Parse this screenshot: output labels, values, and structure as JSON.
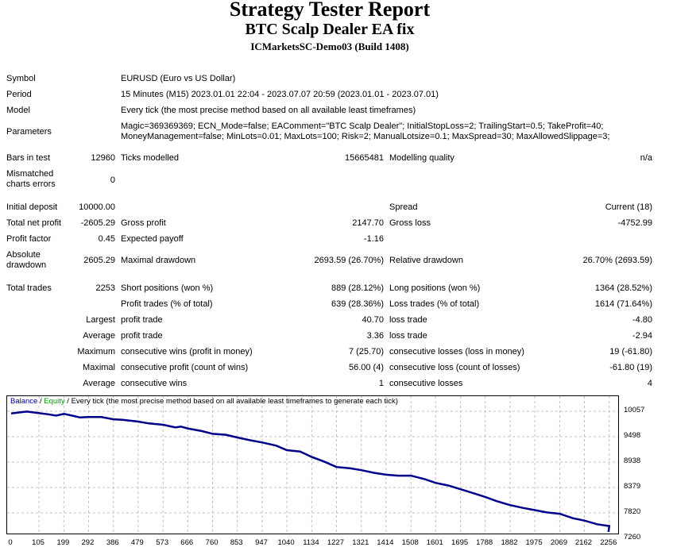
{
  "header": {
    "title": "Strategy Tester Report",
    "ea_name": "BTC Scalp Dealer EA fix",
    "server": "ICMarketsSC-Demo03 (Build 1408)"
  },
  "rows": [
    {
      "a": "Symbol",
      "c": "EURUSD (Euro vs US Dollar)"
    },
    {
      "a": "Period",
      "c": "15 Minutes (M15) 2023.01.01 22:04 - 2023.07.07 20:59 (2023.01.01 - 2023.07.01)"
    },
    {
      "a": "Model",
      "c": "Every tick (the most precise method based on all available least timeframes)"
    },
    {
      "a": "Parameters",
      "c": "Magic=369369369; ECN_Mode=false; EAComment=\"BTC Scalp Dealer\"; InitialStopLoss=2; TrailingStart=0.5; TakeProfit=40;\nMoneyManagement=false; MinLots=0.01; MaxLots=100; Risk=2; ManualLotsize=0.1; MaxSpread=30; MaxAllowedSlippage=3;"
    },
    {
      "a": "Bars in test",
      "b": "12960",
      "c": "Ticks modelled",
      "d": "15665481",
      "e": "Modelling quality",
      "f": "n/a"
    },
    {
      "a": "Mismatched\ncharts errors",
      "b": "0"
    },
    {
      "a": "Initial deposit",
      "b": "10000.00",
      "e": "Spread",
      "f": "Current (18)"
    },
    {
      "a": "Total net profit",
      "b": "-2605.29",
      "c": "Gross profit",
      "d": "2147.70",
      "e": "Gross loss",
      "f": "-4752.99"
    },
    {
      "a": "Profit factor",
      "b": "0.45",
      "c": "Expected payoff",
      "d": "-1.16"
    },
    {
      "a": "Absolute\ndrawdown",
      "b": "2605.29",
      "c": "Maximal drawdown",
      "d": "2693.59 (26.70%)",
      "e": "Relative drawdown",
      "f": "26.70% (2693.59)"
    },
    {
      "a": "Total trades",
      "b": "2253",
      "c": "Short positions (won %)",
      "d": "889 (28.12%)",
      "e": "Long positions (won %)",
      "f": "1364 (28.52%)"
    },
    {
      "c": "Profit trades (% of total)",
      "d": "639 (28.36%)",
      "e": "Loss trades (% of total)",
      "f": "1614 (71.64%)"
    },
    {
      "b": "Largest",
      "c": "profit trade",
      "d": "40.70",
      "e": "loss trade",
      "f": "-4.80"
    },
    {
      "b": "Average",
      "c": "profit trade",
      "d": "3.36",
      "e": "loss trade",
      "f": "-2.94"
    },
    {
      "b": "Maximum",
      "c": "consecutive wins (profit in money)",
      "d": "7 (25.70)",
      "e": "consecutive losses (loss in money)",
      "f": "19 (-61.80)"
    },
    {
      "b": "Maximal",
      "c": "consecutive profit (count of wins)",
      "d": "56.00 (4)",
      "e": "consecutive loss (count of losses)",
      "f": "-61.80 (19)"
    },
    {
      "b": "Average",
      "c": "consecutive wins",
      "d": "1",
      "e": "consecutive losses",
      "f": "4"
    }
  ],
  "chart_data": {
    "type": "line",
    "legend": {
      "balance": "Balance",
      "sep1": " / ",
      "equity": "Equity",
      "sep2": " / ",
      "model": "Every tick (the most precise method based on all available least timeframes to generate each tick)"
    },
    "colors": {
      "balance": "#00008b",
      "equity": "#00a000",
      "grid": "#c0c0c0"
    },
    "x_ticks": [
      "0",
      "105",
      "199",
      "292",
      "386",
      "479",
      "573",
      "666",
      "760",
      "853",
      "947",
      "1040",
      "1134",
      "1227",
      "1321",
      "1414",
      "1508",
      "1601",
      "1695",
      "1788",
      "1882",
      "1975",
      "2069",
      "2162",
      "2256"
    ],
    "y_ticks": [
      "10057",
      "9498",
      "8938",
      "8379",
      "7820",
      "7260"
    ],
    "ylim": [
      7260,
      10057
    ],
    "grid": true,
    "series": [
      {
        "name": "Balance",
        "x": [
          0,
          30,
          60,
          100,
          140,
          170,
          199,
          230,
          260,
          292,
          340,
          386,
          420,
          479,
          520,
          573,
          620,
          640,
          666,
          720,
          760,
          810,
          853,
          900,
          947,
          1000,
          1040,
          1090,
          1134,
          1180,
          1227,
          1280,
          1321,
          1370,
          1414,
          1460,
          1508,
          1560,
          1601,
          1650,
          1695,
          1740,
          1788,
          1830,
          1882,
          1930,
          1975,
          2020,
          2069,
          2120,
          2162,
          2210,
          2256,
          2253
        ],
        "y": [
          10010,
          10030,
          10050,
          10020,
          9990,
          9960,
          10000,
          9960,
          9920,
          9930,
          9930,
          9880,
          9870,
          9830,
          9790,
          9760,
          9700,
          9720,
          9680,
          9620,
          9560,
          9540,
          9480,
          9420,
          9370,
          9300,
          9200,
          9170,
          9050,
          8950,
          8830,
          8800,
          8760,
          8700,
          8660,
          8640,
          8640,
          8560,
          8480,
          8420,
          8340,
          8260,
          8170,
          8080,
          7990,
          7930,
          7880,
          7830,
          7800,
          7700,
          7650,
          7570,
          7530,
          7400
        ]
      }
    ]
  }
}
